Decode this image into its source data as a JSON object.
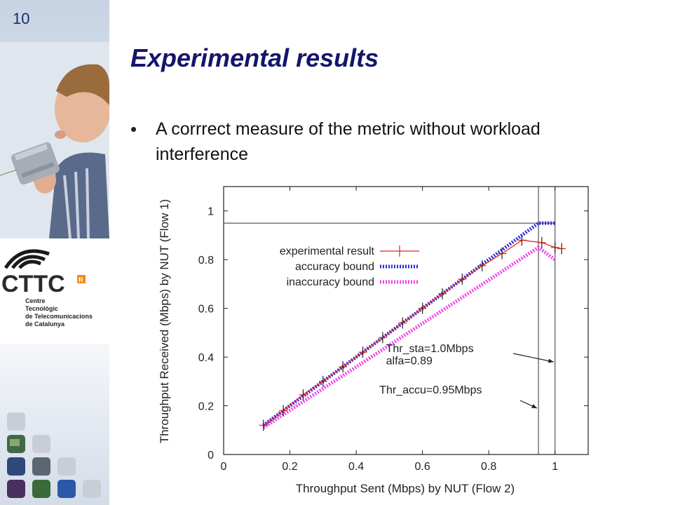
{
  "slide_number": "10",
  "title": "Experimental results",
  "bullet": "A corrrect measure of the metric without workload interference",
  "logo": {
    "wordmark": "CTTC",
    "badge": "R",
    "lines": "Centre\nTecnològic\nde Telecomunicacions\nde Catalunya"
  },
  "colors": {
    "title": "#14166b",
    "experimental": "#e0261c",
    "accuracy": "#2a2ad8",
    "inaccuracy": "#f040e8"
  },
  "chart_data": {
    "type": "line",
    "xlabel": "Throughput Sent (Mbps) by NUT (Flow 2)",
    "ylabel": "Throughput Received (Mbps) by NUT (Flow 1)",
    "xlim": [
      0,
      1.1
    ],
    "ylim": [
      0,
      1.1
    ],
    "xticks": [
      "0",
      "0.2",
      "0.4",
      "0.6",
      "0.8",
      "1"
    ],
    "yticks": [
      "0",
      "0.2",
      "0.4",
      "0.6",
      "0.8",
      "1"
    ],
    "series": [
      {
        "name": "experimental result",
        "x": [
          0.12,
          0.18,
          0.24,
          0.3,
          0.36,
          0.42,
          0.48,
          0.54,
          0.6,
          0.66,
          0.72,
          0.78,
          0.84,
          0.9,
          0.96,
          1.0,
          1.02
        ],
        "y": [
          0.12,
          0.18,
          0.245,
          0.3,
          0.36,
          0.42,
          0.48,
          0.54,
          0.6,
          0.66,
          0.72,
          0.775,
          0.825,
          0.88,
          0.87,
          0.85,
          0.845
        ]
      },
      {
        "name": "accuracy bound",
        "x": [
          0.12,
          0.95,
          1.0
        ],
        "y": [
          0.12,
          0.95,
          0.95
        ]
      },
      {
        "name": "inaccuracy bound",
        "x": [
          0.12,
          0.95,
          1.0
        ],
        "y": [
          0.11,
          0.85,
          0.8
        ]
      }
    ],
    "reference_lines": {
      "hline_y": 0.95,
      "vline_x": [
        0.95,
        1.0
      ]
    },
    "annotations": [
      {
        "text": "Thr_sta=1.0Mbps",
        "x": 0.49,
        "y": 0.42
      },
      {
        "text": "alfa=0.89",
        "x": 0.49,
        "y": 0.37
      },
      {
        "text": "Thr_accu=0.95Mbps",
        "x": 0.47,
        "y": 0.25
      }
    ],
    "legend_position": "upper-right",
    "grid": false
  }
}
